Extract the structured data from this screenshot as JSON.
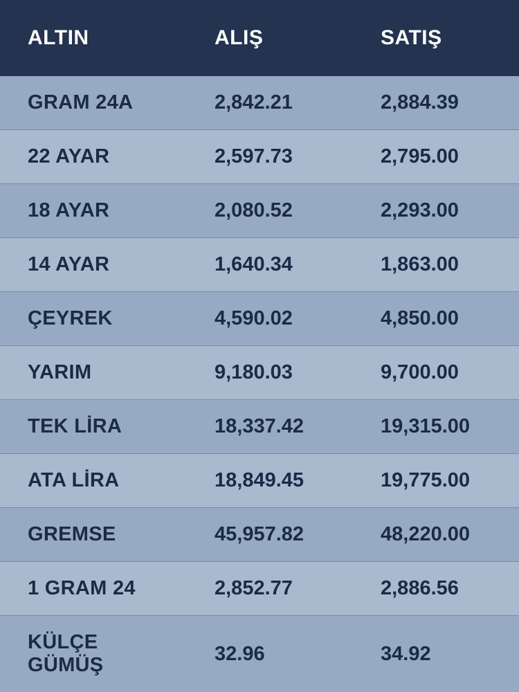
{
  "table": {
    "type": "table",
    "background_header": "#24334f",
    "row_bg_odd": "#96aac3",
    "row_bg_even": "#aabace",
    "row_border_color": "#7a8aa0",
    "header_text_color": "#ffffff",
    "cell_text_color": "#1b2a47",
    "header_fontsize": 30,
    "cell_fontsize": 29,
    "columns": [
      {
        "key": "name",
        "label": "ALTIN",
        "width": "36%"
      },
      {
        "key": "buy",
        "label": "ALIŞ",
        "width": "32%"
      },
      {
        "key": "sell",
        "label": "SATIŞ",
        "width": "32%"
      }
    ],
    "rows": [
      {
        "name": "GRAM 24A",
        "buy": "2,842.21",
        "sell": "2,884.39"
      },
      {
        "name": "22 AYAR",
        "buy": "2,597.73",
        "sell": "2,795.00"
      },
      {
        "name": "18 AYAR",
        "buy": "2,080.52",
        "sell": "2,293.00"
      },
      {
        "name": "14 AYAR",
        "buy": "1,640.34",
        "sell": "1,863.00"
      },
      {
        "name": "ÇEYREK",
        "buy": "4,590.02",
        "sell": "4,850.00"
      },
      {
        "name": "YARIM",
        "buy": "9,180.03",
        "sell": "9,700.00"
      },
      {
        "name": "TEK LİRA",
        "buy": "18,337.42",
        "sell": "19,315.00"
      },
      {
        "name": "ATA LİRA",
        "buy": "18,849.45",
        "sell": "19,775.00"
      },
      {
        "name": "GREMSE",
        "buy": "45,957.82",
        "sell": "48,220.00"
      },
      {
        "name": "1 GRAM 24",
        "buy": "2,852.77",
        "sell": "2,886.56"
      },
      {
        "name": "KÜLÇE GÜMÜŞ",
        "buy": "32.96",
        "sell": "34.92"
      }
    ]
  }
}
